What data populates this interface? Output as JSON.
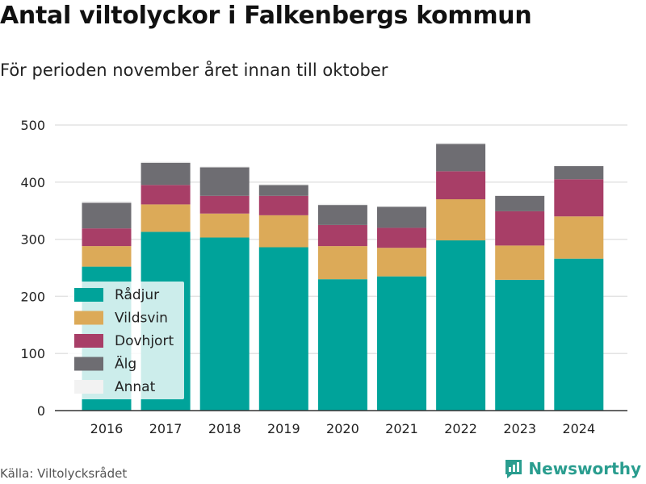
{
  "header": {
    "title": "Antal viltolyckor i Falkenbergs kommun",
    "subtitle": "För perioden november året innan till oktober"
  },
  "footer": {
    "source": "Källa: Viltolycksrådet",
    "brand": "Newsworthy"
  },
  "colors": {
    "Rådjur": "#00a39a",
    "Vildsvin": "#dcaa58",
    "Dovhjort": "#a83e67",
    "Älg": "#6e6d72",
    "Annat": "#f2f2f2",
    "brand": "#2a9d8f"
  },
  "chart_data": {
    "type": "bar",
    "stacked": true,
    "categories": [
      "2016",
      "2017",
      "2018",
      "2019",
      "2020",
      "2021",
      "2022",
      "2023",
      "2024"
    ],
    "series": [
      {
        "name": "Rådjur",
        "values": [
          252,
          313,
          303,
          286,
          230,
          235,
          298,
          229,
          266
        ]
      },
      {
        "name": "Vildsvin",
        "values": [
          36,
          48,
          42,
          56,
          58,
          50,
          72,
          60,
          74
        ]
      },
      {
        "name": "Dovhjort",
        "values": [
          31,
          34,
          31,
          34,
          37,
          35,
          49,
          60,
          65
        ]
      },
      {
        "name": "Älg",
        "values": [
          45,
          39,
          50,
          19,
          35,
          37,
          48,
          27,
          23
        ]
      },
      {
        "name": "Annat",
        "values": [
          3,
          2,
          2,
          2,
          2,
          1,
          2,
          1,
          2
        ]
      }
    ],
    "yticks": [
      0,
      100,
      200,
      300,
      400,
      500
    ],
    "ylim": [
      0,
      500
    ],
    "grid": true,
    "legend": "bottom-left"
  }
}
